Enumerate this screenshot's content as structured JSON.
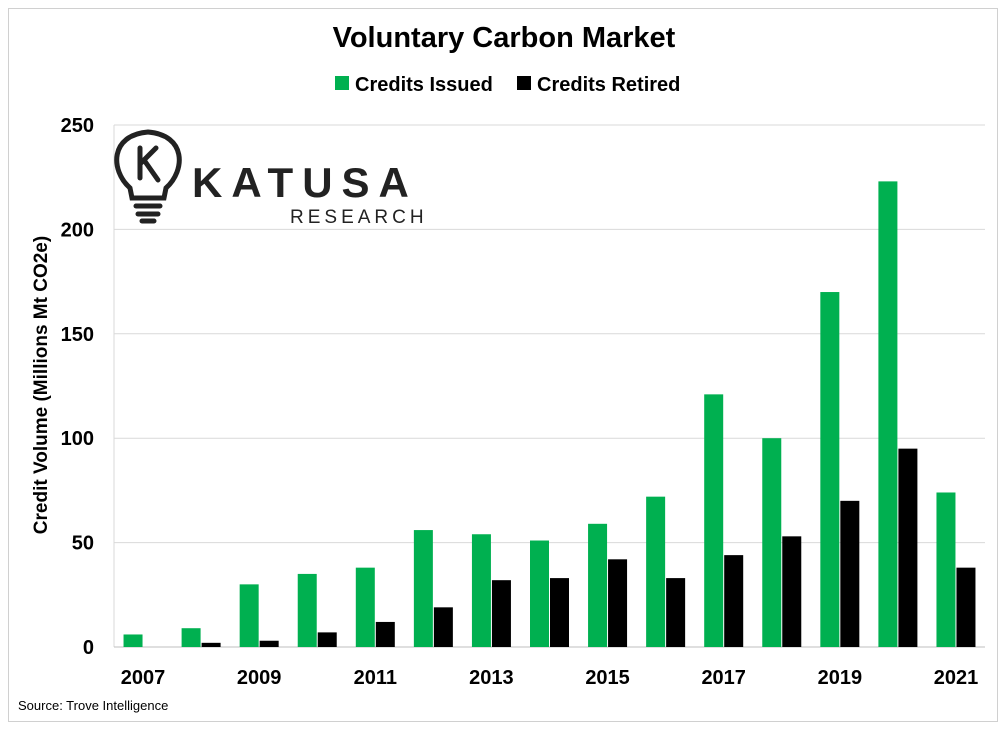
{
  "chart_data": {
    "type": "bar",
    "title": "Voluntary Carbon Market",
    "ylabel": "Credit Volume (Millions Mt CO2e)",
    "xlabel": "",
    "ylim": [
      0,
      250
    ],
    "yticks": [
      "0",
      "50",
      "100",
      "150",
      "200",
      "250"
    ],
    "categories": [
      "2007",
      "2008",
      "2009",
      "2010",
      "2011",
      "2012",
      "2013",
      "2014",
      "2015",
      "2016",
      "2017",
      "2018",
      "2019",
      "2020",
      "2021"
    ],
    "xtick_labels": [
      "2007",
      "",
      "2009",
      "",
      "2011",
      "",
      "2013",
      "",
      "2015",
      "",
      "2017",
      "",
      "2019",
      "",
      "2021"
    ],
    "series": [
      {
        "name": "Credits Issued",
        "color": "#00b050",
        "values": [
          6,
          9,
          30,
          35,
          38,
          56,
          54,
          51,
          59,
          72,
          121,
          100,
          170,
          223,
          74
        ]
      },
      {
        "name": "Credits Retired",
        "color": "#000000",
        "values": [
          0,
          2,
          3,
          7,
          12,
          19,
          32,
          33,
          42,
          33,
          44,
          53,
          70,
          95,
          38
        ]
      }
    ],
    "grid": true,
    "legend_position": "top"
  },
  "logo": {
    "name": "KATUSA",
    "sub": "RESEARCH",
    "icon": "lightbulb-k-icon"
  },
  "source": "Source: Trove Intelligence"
}
